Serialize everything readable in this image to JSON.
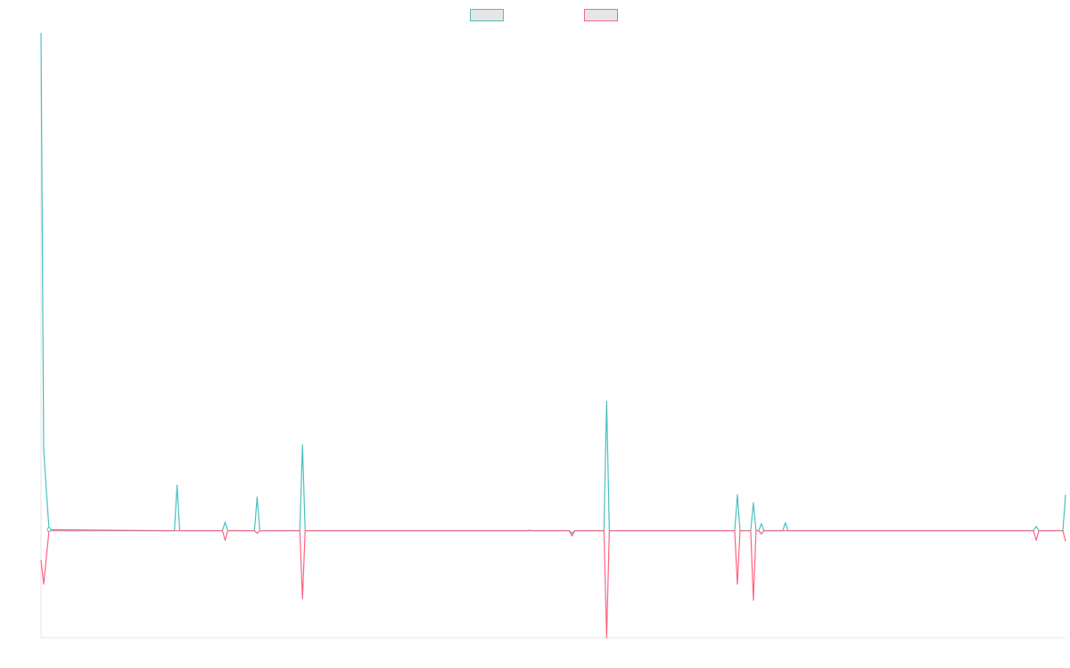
{
  "chart_data": {
    "type": "line",
    "title": "",
    "xlabel": "",
    "ylabel": "",
    "grid": false,
    "legend_position": "top",
    "x": [
      0,
      1,
      2,
      3,
      4,
      5,
      6,
      7,
      8,
      9,
      10,
      11,
      12,
      13,
      14,
      15,
      16,
      17,
      18,
      19,
      20,
      21,
      22,
      23,
      24,
      25,
      26,
      27,
      28,
      29,
      30,
      31,
      32,
      33,
      34,
      35,
      36,
      37,
      38,
      39,
      40,
      41,
      42,
      43,
      44,
      45,
      46,
      47,
      48,
      49,
      50,
      51,
      52,
      53,
      54,
      55,
      56,
      57,
      58,
      59,
      60,
      61,
      62,
      63,
      64,
      65,
      66,
      67,
      68,
      69,
      70,
      71,
      72,
      73,
      74,
      75,
      76,
      77,
      78,
      79,
      80,
      81,
      82,
      83,
      84,
      85,
      86,
      87,
      88,
      89,
      90,
      91,
      92,
      93,
      94,
      95,
      96,
      97,
      98,
      99,
      100,
      101,
      102,
      103,
      104,
      105,
      106,
      107,
      108,
      109,
      110,
      111,
      112,
      113,
      114,
      115,
      116,
      117,
      118,
      119,
      120,
      121,
      122,
      123,
      124,
      125,
      126,
      127,
      128,
      129,
      130,
      131,
      132,
      133,
      134,
      135,
      136,
      137,
      138,
      139,
      140,
      141,
      142,
      143,
      144,
      145,
      146,
      147,
      148,
      149,
      150,
      151,
      152,
      153,
      154,
      155,
      156,
      157,
      158,
      159,
      160,
      161,
      162,
      163,
      164,
      165,
      166,
      167,
      168,
      169,
      170,
      171,
      172,
      173,
      174,
      175,
      176,
      177,
      178,
      179,
      180,
      181,
      182,
      183,
      184,
      185,
      186,
      187,
      188,
      189,
      190,
      191,
      192,
      193,
      194,
      195,
      196,
      197,
      198,
      199,
      200,
      201,
      202,
      203,
      204,
      205,
      206,
      207,
      208,
      209,
      210,
      211,
      212,
      213,
      214,
      215,
      216,
      217,
      218,
      219,
      220,
      221,
      222,
      223,
      224,
      225,
      226,
      227,
      228,
      229,
      230,
      231,
      232,
      233,
      234,
      235,
      236,
      237,
      238,
      239,
      240,
      241,
      242,
      243,
      244,
      245,
      246,
      247,
      248,
      249,
      250,
      251,
      252,
      253,
      254,
      255,
      256,
      257,
      258,
      259,
      260,
      261,
      262,
      263,
      264,
      265,
      266,
      267,
      268,
      269,
      270,
      271,
      272,
      273,
      274,
      275,
      276,
      277,
      278,
      279,
      280,
      281,
      282,
      283,
      284,
      285,
      286,
      287,
      288,
      289,
      290,
      291,
      292,
      293,
      294,
      295,
      296,
      297,
      298,
      299,
      300,
      301,
      302,
      303,
      304,
      305,
      306,
      307,
      308,
      309,
      310,
      311,
      312,
      313,
      314,
      315,
      316,
      317,
      318,
      319,
      320,
      321,
      322,
      323,
      324,
      325,
      326,
      327,
      328,
      329,
      330,
      331,
      332,
      333,
      334,
      335,
      336,
      337,
      338,
      339,
      340,
      341,
      342,
      343,
      344,
      345,
      346,
      347,
      348,
      349,
      350,
      351,
      352,
      353,
      354,
      355,
      356,
      357,
      358,
      359,
      360,
      361,
      362,
      363,
      364,
      365,
      366,
      367,
      368,
      369,
      370,
      371,
      372,
      373,
      374,
      375,
      376,
      377,
      378,
      379,
      380,
      381,
      382,
      383,
      384
    ],
    "ylim": [
      -2,
      9.3
    ],
    "series": [
      {
        "name": "",
        "color": "#4bc0c0",
        "points": [
          [
            0,
            9.3
          ],
          [
            1,
            1.5
          ],
          [
            3,
            0.02
          ],
          [
            50,
            0
          ],
          [
            51,
            0.85
          ],
          [
            52,
            0
          ],
          [
            68,
            0
          ],
          [
            69,
            0.16
          ],
          [
            70,
            0
          ],
          [
            80,
            0
          ],
          [
            81,
            0.63
          ],
          [
            82,
            0
          ],
          [
            97,
            0
          ],
          [
            98,
            1.6
          ],
          [
            99,
            0
          ],
          [
            182,
            0
          ],
          [
            183,
            0.01
          ],
          [
            184,
            0
          ],
          [
            198,
            0
          ],
          [
            199,
            -0.05
          ],
          [
            200,
            0
          ],
          [
            211,
            0
          ],
          [
            212,
            2.42
          ],
          [
            213,
            0
          ],
          [
            260,
            0
          ],
          [
            261,
            0.67
          ],
          [
            262,
            0
          ],
          [
            266,
            0
          ],
          [
            267,
            0.52
          ],
          [
            268,
            0
          ],
          [
            269,
            0
          ],
          [
            270,
            0.13
          ],
          [
            271,
            0
          ],
          [
            278,
            0
          ],
          [
            279,
            0.15
          ],
          [
            280,
            0
          ],
          [
            372,
            0
          ],
          [
            373,
            0.08
          ],
          [
            374,
            0
          ],
          [
            383,
            0
          ],
          [
            384,
            0.67
          ]
        ]
      },
      {
        "name": "",
        "color": "#ff6384",
        "points": [
          [
            0,
            -0.55
          ],
          [
            1,
            -1
          ],
          [
            3,
            0
          ],
          [
            50,
            0
          ],
          [
            51,
            0
          ],
          [
            52,
            0
          ],
          [
            68,
            0
          ],
          [
            69,
            -0.18
          ],
          [
            70,
            0
          ],
          [
            80,
            0
          ],
          [
            81,
            -0.05
          ],
          [
            82,
            0
          ],
          [
            97,
            0
          ],
          [
            98,
            -1.27
          ],
          [
            99,
            0
          ],
          [
            182,
            0
          ],
          [
            183,
            0
          ],
          [
            184,
            0
          ],
          [
            198,
            0
          ],
          [
            199,
            -0.1
          ],
          [
            200,
            0
          ],
          [
            211,
            0
          ],
          [
            212,
            -2
          ],
          [
            213,
            0
          ],
          [
            260,
            0
          ],
          [
            261,
            -1
          ],
          [
            262,
            0
          ],
          [
            266,
            0
          ],
          [
            267,
            -1.3
          ],
          [
            268,
            0
          ],
          [
            269,
            0
          ],
          [
            270,
            -0.06
          ],
          [
            271,
            0
          ],
          [
            278,
            0
          ],
          [
            279,
            0
          ],
          [
            280,
            0
          ],
          [
            372,
            0
          ],
          [
            373,
            -0.18
          ],
          [
            374,
            0
          ],
          [
            383,
            0
          ],
          [
            384,
            -0.2
          ]
        ]
      }
    ]
  }
}
